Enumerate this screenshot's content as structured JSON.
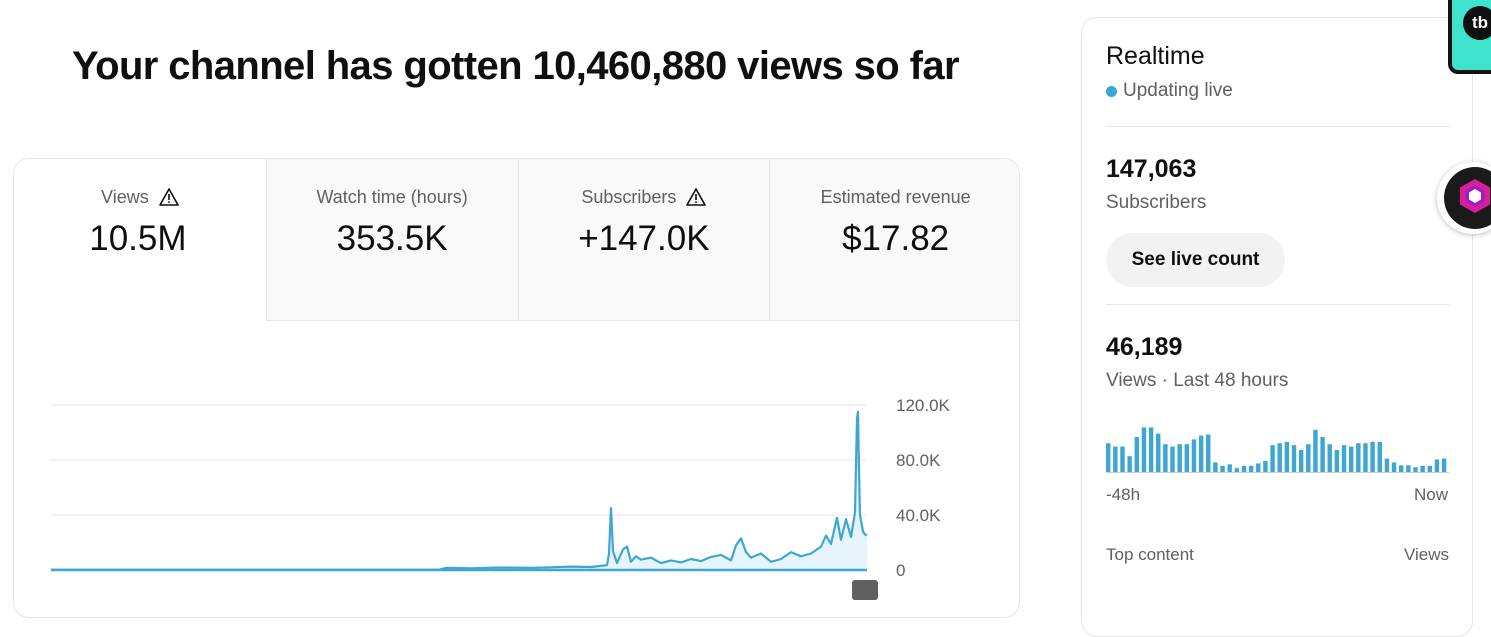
{
  "headline": "Your channel has gotten 10,460,880 views so far",
  "tabs": [
    {
      "label": "Views",
      "value": "10.5M",
      "warning": true,
      "selected": true
    },
    {
      "label": "Watch time (hours)",
      "value": "353.5K",
      "warning": false,
      "selected": false
    },
    {
      "label": "Subscribers",
      "value": "+147.0K",
      "warning": true,
      "selected": false
    },
    {
      "label": "Estimated revenue",
      "value": "$17.82",
      "warning": false,
      "selected": false
    }
  ],
  "chart_data": {
    "type": "line",
    "ylim": [
      0,
      120000
    ],
    "y_ticks": [
      "120.0K",
      "80.0K",
      "40.0K",
      "0"
    ],
    "y_tick_values": [
      120000,
      80000,
      40000,
      0
    ],
    "grid": true,
    "color": "#3ea6d3",
    "series": [
      {
        "x": [
          0,
          50,
          100,
          150,
          200,
          250,
          300,
          350,
          388,
          395,
          420,
          450,
          480,
          500,
          520,
          540,
          556,
          558,
          560,
          562,
          566,
          572,
          576,
          580,
          585,
          590,
          600,
          610,
          620,
          630,
          640,
          650,
          660,
          670,
          680,
          685,
          690,
          695,
          700,
          710,
          720,
          730,
          740,
          750,
          760,
          770,
          775,
          780,
          786,
          790,
          795,
          800,
          804,
          806,
          807,
          808,
          809,
          812,
          814,
          816
        ],
        "y": [
          200,
          200,
          200,
          200,
          200,
          200,
          200,
          200,
          200,
          1500,
          1200,
          1800,
          1500,
          2000,
          2500,
          2200,
          3500,
          12000,
          45000,
          14000,
          5000,
          15000,
          17000,
          6000,
          10000,
          7500,
          9000,
          5000,
          7000,
          5500,
          8000,
          6500,
          9500,
          11000,
          7000,
          18000,
          23000,
          13000,
          9000,
          12000,
          6000,
          8000,
          13000,
          10000,
          12000,
          17000,
          25000,
          19000,
          38000,
          22000,
          37000,
          24000,
          42000,
          110000,
          115000,
          72000,
          40000,
          28000,
          26000,
          25000
        ]
      }
    ]
  },
  "realtime": {
    "title": "Realtime",
    "live_text": "Updating live",
    "subscribers_value": "147,063",
    "subscribers_label": "Subscribers",
    "live_count_button": "See live count",
    "views_value": "46,189",
    "views_label": "Views · Last 48 hours",
    "bars": [
      0.62,
      0.55,
      0.55,
      0.35,
      0.75,
      0.95,
      0.95,
      0.82,
      0.6,
      0.55,
      0.6,
      0.6,
      0.7,
      0.78,
      0.8,
      0.22,
      0.15,
      0.18,
      0.1,
      0.15,
      0.15,
      0.2,
      0.25,
      0.58,
      0.62,
      0.65,
      0.58,
      0.48,
      0.6,
      0.9,
      0.75,
      0.6,
      0.48,
      0.58,
      0.55,
      0.62,
      0.62,
      0.65,
      0.65,
      0.3,
      0.22,
      0.16,
      0.16,
      0.12,
      0.15,
      0.15,
      0.28,
      0.3
    ],
    "axis_start": "-48h",
    "axis_end": "Now",
    "top_content_label": "Top content",
    "top_content_metric": "Views"
  },
  "extensions": {
    "tb_label": "tb"
  }
}
